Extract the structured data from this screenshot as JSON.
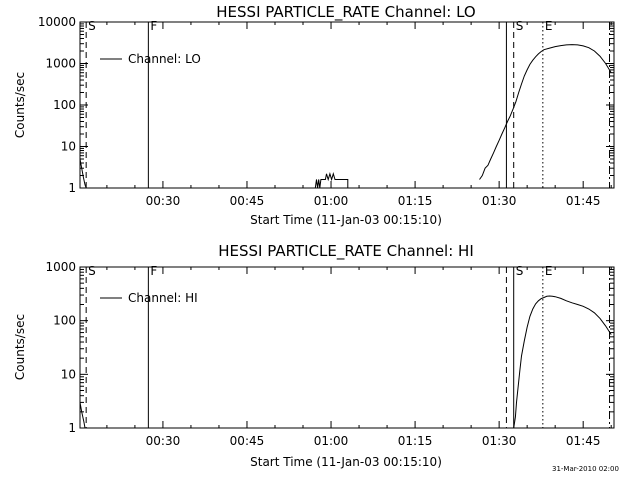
{
  "footer": {
    "timestamp": "31-Mar-2010 02:00"
  },
  "chart_data": [
    {
      "type": "line",
      "title": "HESSI PARTICLE_RATE Channel: LO",
      "xlabel": "Start Time (11-Jan-03 00:15:10)",
      "ylabel": "Counts/sec",
      "yscale": "log",
      "ylim": [
        1,
        10000
      ],
      "xlim_minutes": [
        15.2,
        110.5
      ],
      "xticks": [
        {
          "m": 30,
          "label": "00:30"
        },
        {
          "m": 45,
          "label": "00:45"
        },
        {
          "m": 60,
          "label": "01:00"
        },
        {
          "m": 75,
          "label": "01:15"
        },
        {
          "m": 90,
          "label": "01:30"
        },
        {
          "m": 105,
          "label": "01:45"
        }
      ],
      "yticks": [
        {
          "v": 1,
          "label": "1"
        },
        {
          "v": 10,
          "label": "10"
        },
        {
          "v": 100,
          "label": "100"
        },
        {
          "v": 1000,
          "label": "1000"
        },
        {
          "v": 10000,
          "label": "10000"
        }
      ],
      "legend": {
        "position": "top-left",
        "entries": [
          "Channel: LO"
        ]
      },
      "markers": [
        {
          "m": 16.3,
          "style": "dashed",
          "label": "S"
        },
        {
          "m": 27.4,
          "style": "solid",
          "label": "F"
        },
        {
          "m": 91.3,
          "style": "solid",
          "label": ""
        },
        {
          "m": 92.6,
          "style": "dashed",
          "label": "S"
        },
        {
          "m": 97.8,
          "style": "dotted",
          "label": "E"
        },
        {
          "m": 109.7,
          "style": "dashdot",
          "label": ""
        }
      ],
      "series": [
        {
          "name": "Channel: LO",
          "segments": [
            [
              [
                15.2,
                5
              ],
              [
                15.5,
                3
              ],
              [
                15.8,
                1.8
              ],
              [
                16.1,
                1.2
              ],
              [
                16.3,
                1
              ]
            ],
            [
              [
                57.2,
                1
              ],
              [
                57.4,
                1.6
              ],
              [
                57.6,
                1
              ],
              [
                57.8,
                1.6
              ],
              [
                58.0,
                1
              ],
              [
                58.2,
                1.6
              ],
              [
                58.4,
                1.6
              ],
              [
                59.0,
                1.6
              ],
              [
                59.2,
                2.2
              ],
              [
                59.5,
                1.6
              ],
              [
                59.8,
                2.2
              ],
              [
                60.1,
                1.6
              ],
              [
                60.4,
                2.2
              ],
              [
                60.7,
                1.6
              ],
              [
                63.0,
                1.6
              ],
              [
                63.0,
                1
              ]
            ],
            [
              [
                86.5,
                1.6
              ],
              [
                87.0,
                2
              ],
              [
                87.5,
                3
              ],
              [
                88.0,
                3.5
              ],
              [
                88.5,
                5
              ],
              [
                89.0,
                7
              ],
              [
                89.5,
                10
              ],
              [
                90.0,
                14
              ],
              [
                90.5,
                20
              ],
              [
                91.0,
                28
              ],
              [
                91.5,
                40
              ],
              [
                92.0,
                55
              ],
              [
                92.5,
                80
              ],
              [
                93.0,
                120
              ],
              [
                93.5,
                200
              ],
              [
                94.0,
                320
              ],
              [
                94.5,
                500
              ],
              [
                95.0,
                700
              ],
              [
                95.5,
                950
              ],
              [
                96.0,
                1200
              ],
              [
                96.5,
                1450
              ],
              [
                97.0,
                1700
              ],
              [
                97.5,
                1950
              ],
              [
                98.0,
                2150
              ],
              [
                99.0,
                2350
              ],
              [
                100.0,
                2550
              ],
              [
                101.0,
                2700
              ],
              [
                102.0,
                2800
              ],
              [
                103.0,
                2850
              ],
              [
                104.0,
                2800
              ],
              [
                105.0,
                2650
              ],
              [
                106.0,
                2400
              ],
              [
                107.0,
                2000
              ],
              [
                108.0,
                1500
              ],
              [
                109.0,
                1000
              ],
              [
                110.0,
                600
              ]
            ]
          ]
        }
      ]
    },
    {
      "type": "line",
      "title": "HESSI PARTICLE_RATE Channel: HI",
      "xlabel": "Start Time (11-Jan-03 00:15:10)",
      "ylabel": "Counts/sec",
      "yscale": "log",
      "ylim": [
        1,
        1000
      ],
      "xlim_minutes": [
        15.2,
        110.5
      ],
      "xticks": [
        {
          "m": 30,
          "label": "00:30"
        },
        {
          "m": 45,
          "label": "00:45"
        },
        {
          "m": 60,
          "label": "01:00"
        },
        {
          "m": 75,
          "label": "01:15"
        },
        {
          "m": 90,
          "label": "01:30"
        },
        {
          "m": 105,
          "label": "01:45"
        }
      ],
      "yticks": [
        {
          "v": 1,
          "label": "1"
        },
        {
          "v": 10,
          "label": "10"
        },
        {
          "v": 100,
          "label": "100"
        },
        {
          "v": 1000,
          "label": "1000"
        }
      ],
      "legend": {
        "position": "top-left",
        "entries": [
          "Channel: HI"
        ]
      },
      "markers": [
        {
          "m": 16.3,
          "style": "dashed",
          "label": "S"
        },
        {
          "m": 27.4,
          "style": "solid",
          "label": "F"
        },
        {
          "m": 91.3,
          "style": "dashed",
          "label": ""
        },
        {
          "m": 92.6,
          "style": "solid",
          "label": "S"
        },
        {
          "m": 97.8,
          "style": "dotted",
          "label": "E"
        },
        {
          "m": 109.7,
          "style": "dashdot",
          "label": ""
        }
      ],
      "series": [
        {
          "name": "Channel: HI",
          "segments": [
            [
              [
                15.2,
                3
              ],
              [
                15.5,
                2
              ],
              [
                15.9,
                1.3
              ],
              [
                16.1,
                1
              ]
            ],
            [
              [
                92.6,
                1
              ],
              [
                92.9,
                1.6
              ],
              [
                93.1,
                3
              ],
              [
                93.4,
                6
              ],
              [
                93.7,
                12
              ],
              [
                94.0,
                22
              ],
              [
                94.5,
                42
              ],
              [
                95.0,
                75
              ],
              [
                95.5,
                120
              ],
              [
                96.0,
                165
              ],
              [
                96.5,
                205
              ],
              [
                97.0,
                235
              ],
              [
                97.5,
                258
              ],
              [
                98.0,
                270
              ],
              [
                98.5,
                285
              ],
              [
                99.0,
                288
              ],
              [
                99.5,
                285
              ],
              [
                100.0,
                280
              ],
              [
                101.0,
                260
              ],
              [
                102.0,
                235
              ],
              [
                103.0,
                215
              ],
              [
                104.0,
                200
              ],
              [
                105.0,
                185
              ],
              [
                106.0,
                165
              ],
              [
                107.0,
                140
              ],
              [
                108.0,
                110
              ],
              [
                109.0,
                80
              ],
              [
                110.0,
                55
              ]
            ]
          ]
        }
      ]
    }
  ]
}
